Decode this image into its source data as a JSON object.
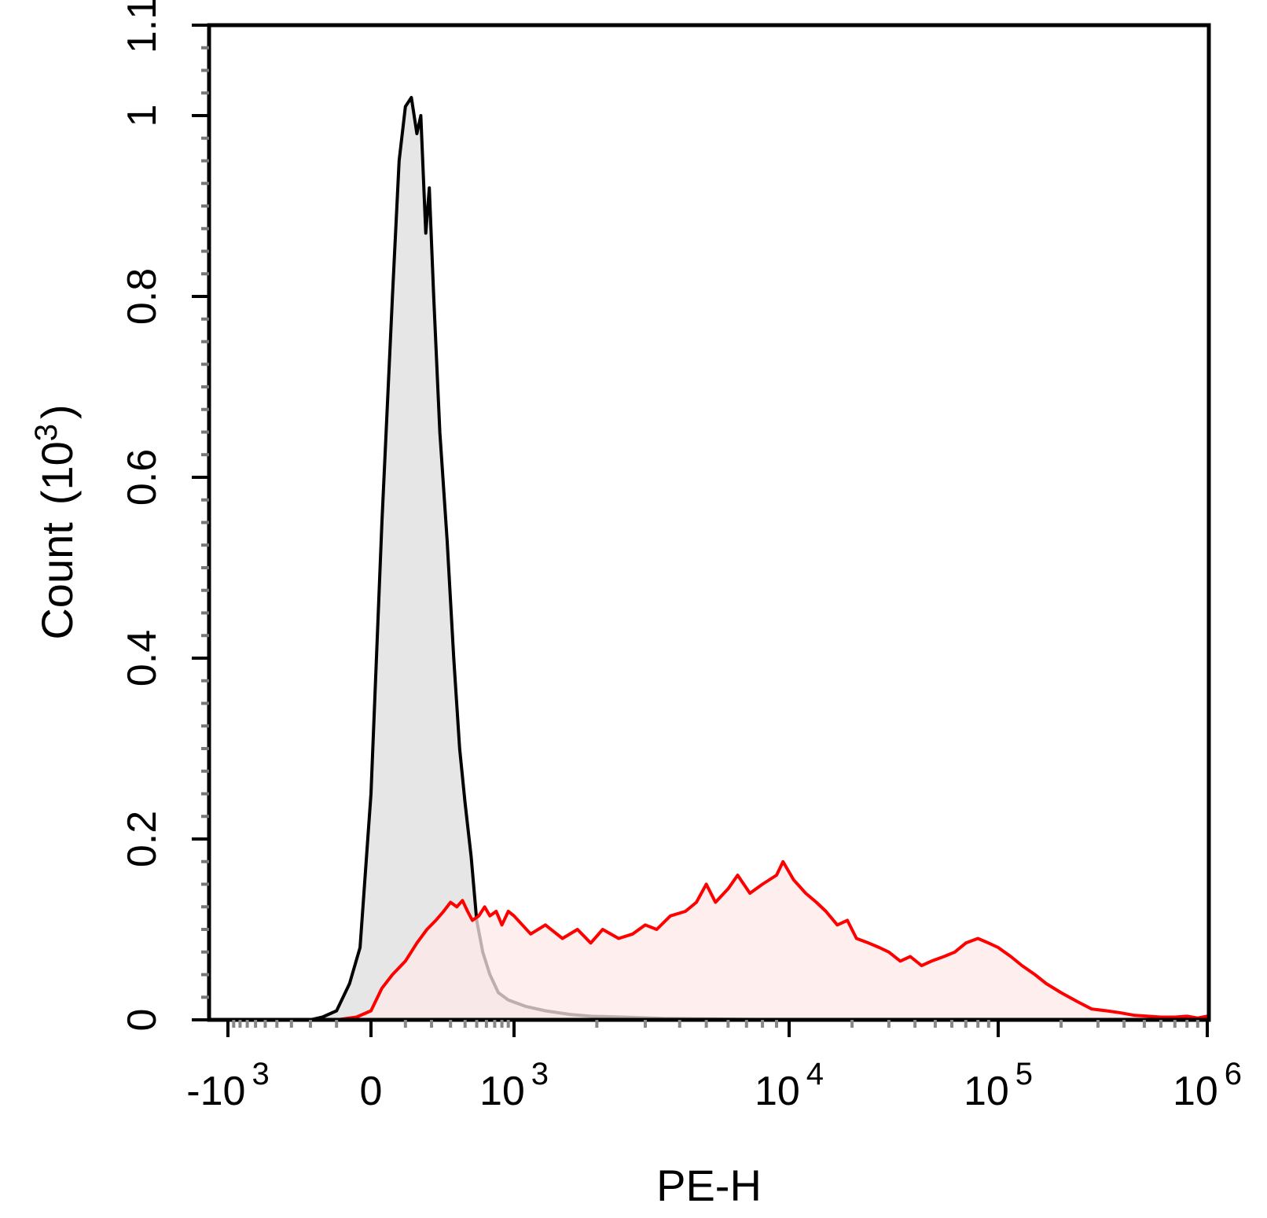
{
  "chart_data": {
    "type": "area",
    "xlabel": "PE-H",
    "ylabel": "Count",
    "ylabel_unit": "(10",
    "ylabel_exp": "3",
    "ylabel_close": ")",
    "x_scale": "biexponential",
    "xlim": [
      -1200,
      1000000
    ],
    "ylim": [
      0,
      1.1
    ],
    "grid": false,
    "x_ticks": [
      {
        "value": -1000,
        "base": "-10",
        "exp": "3"
      },
      {
        "value": 0,
        "base": "0",
        "exp": ""
      },
      {
        "value": 1000,
        "base": "10",
        "exp": "3"
      },
      {
        "value": 10000,
        "base": "10",
        "exp": "4"
      },
      {
        "value": 100000,
        "base": "10",
        "exp": "5"
      },
      {
        "value": 1000000,
        "base": "10",
        "exp": "6"
      }
    ],
    "y_ticks": [
      {
        "value": 0,
        "label": "0"
      },
      {
        "value": 0.2,
        "label": "0.2"
      },
      {
        "value": 0.4,
        "label": "0.4"
      },
      {
        "value": 0.6,
        "label": "0.6"
      },
      {
        "value": 0.8,
        "label": "0.8"
      },
      {
        "value": 1.0,
        "label": "1"
      },
      {
        "value": 1.1,
        "label": "1.1"
      }
    ],
    "series": [
      {
        "stroke": "#000000",
        "fill": "#e6e6e6",
        "points": [
          [
            -1100,
            0
          ],
          [
            -200,
            0
          ],
          [
            -150,
            0.003
          ],
          [
            -100,
            0.01
          ],
          [
            -60,
            0.04
          ],
          [
            -30,
            0.08
          ],
          [
            0,
            0.25
          ],
          [
            30,
            0.55
          ],
          [
            60,
            0.8
          ],
          [
            80,
            0.95
          ],
          [
            100,
            1.01
          ],
          [
            120,
            1.02
          ],
          [
            140,
            0.98
          ],
          [
            155,
            1.0
          ],
          [
            175,
            0.87
          ],
          [
            190,
            0.92
          ],
          [
            210,
            0.8
          ],
          [
            240,
            0.65
          ],
          [
            280,
            0.53
          ],
          [
            320,
            0.4
          ],
          [
            360,
            0.3
          ],
          [
            400,
            0.24
          ],
          [
            450,
            0.18
          ],
          [
            500,
            0.11
          ],
          [
            560,
            0.075
          ],
          [
            640,
            0.05
          ],
          [
            750,
            0.03
          ],
          [
            900,
            0.022
          ],
          [
            1100,
            0.015
          ],
          [
            1300,
            0.01
          ],
          [
            1600,
            0.006
          ],
          [
            1900,
            0.004
          ],
          [
            2500,
            0.003
          ],
          [
            3500,
            0.0015
          ],
          [
            5000,
            0.001
          ],
          [
            10000,
            0
          ],
          [
            1000000,
            0
          ]
        ]
      },
      {
        "stroke": "#ff0000",
        "fill": "#fde8e8",
        "points": [
          [
            -100,
            0
          ],
          [
            -40,
            0.003
          ],
          [
            0,
            0.01
          ],
          [
            30,
            0.035
          ],
          [
            60,
            0.05
          ],
          [
            100,
            0.065
          ],
          [
            140,
            0.085
          ],
          [
            180,
            0.1
          ],
          [
            220,
            0.11
          ],
          [
            260,
            0.12
          ],
          [
            300,
            0.13
          ],
          [
            340,
            0.125
          ],
          [
            380,
            0.132
          ],
          [
            420,
            0.12
          ],
          [
            460,
            0.11
          ],
          [
            520,
            0.115
          ],
          [
            580,
            0.125
          ],
          [
            640,
            0.115
          ],
          [
            720,
            0.12
          ],
          [
            800,
            0.105
          ],
          [
            900,
            0.12
          ],
          [
            1000,
            0.115
          ],
          [
            1150,
            0.095
          ],
          [
            1300,
            0.105
          ],
          [
            1500,
            0.09
          ],
          [
            1700,
            0.1
          ],
          [
            1900,
            0.085
          ],
          [
            2100,
            0.1
          ],
          [
            2400,
            0.09
          ],
          [
            2700,
            0.095
          ],
          [
            3000,
            0.105
          ],
          [
            3300,
            0.1
          ],
          [
            3700,
            0.115
          ],
          [
            4200,
            0.12
          ],
          [
            4600,
            0.13
          ],
          [
            5000,
            0.15
          ],
          [
            5400,
            0.13
          ],
          [
            6000,
            0.145
          ],
          [
            6500,
            0.16
          ],
          [
            7200,
            0.14
          ],
          [
            8000,
            0.15
          ],
          [
            9000,
            0.16
          ],
          [
            9500,
            0.175
          ],
          [
            10500,
            0.155
          ],
          [
            12000,
            0.14
          ],
          [
            13500,
            0.13
          ],
          [
            15000,
            0.12
          ],
          [
            17000,
            0.105
          ],
          [
            19000,
            0.11
          ],
          [
            21000,
            0.09
          ],
          [
            24000,
            0.085
          ],
          [
            27000,
            0.08
          ],
          [
            30000,
            0.075
          ],
          [
            34000,
            0.065
          ],
          [
            38000,
            0.07
          ],
          [
            43000,
            0.06
          ],
          [
            48000,
            0.065
          ],
          [
            55000,
            0.07
          ],
          [
            62000,
            0.075
          ],
          [
            70000,
            0.085
          ],
          [
            80000,
            0.09
          ],
          [
            90000,
            0.085
          ],
          [
            100000,
            0.08
          ],
          [
            115000,
            0.07
          ],
          [
            130000,
            0.06
          ],
          [
            150000,
            0.05
          ],
          [
            170000,
            0.04
          ],
          [
            200000,
            0.03
          ],
          [
            240000,
            0.02
          ],
          [
            280000,
            0.012
          ],
          [
            330000,
            0.01
          ],
          [
            380000,
            0.008
          ],
          [
            450000,
            0.005
          ],
          [
            520000,
            0.004
          ],
          [
            600000,
            0.003
          ],
          [
            700000,
            0.003
          ],
          [
            800000,
            0.004
          ],
          [
            900000,
            0.002
          ],
          [
            1000000,
            0.004
          ]
        ]
      }
    ]
  }
}
